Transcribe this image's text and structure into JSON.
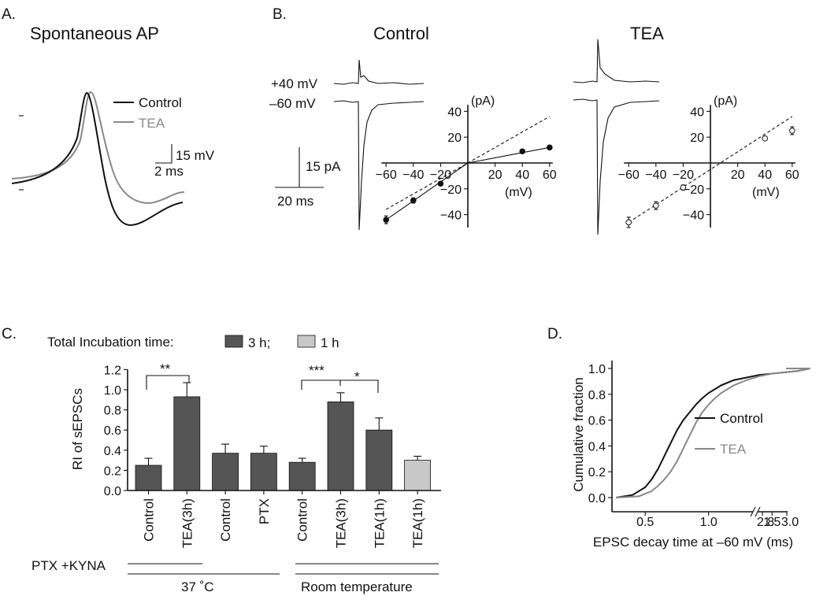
{
  "panel_a": {
    "letter": "A.",
    "title": "Spontaneous  AP",
    "legend": [
      "Control",
      "TEA"
    ],
    "scale_bar": {
      "voltage": "15 mV",
      "time": "2 ms"
    },
    "colors": {
      "control": "#111111",
      "tea": "#888888"
    }
  },
  "panel_b": {
    "letter": "B.",
    "control_title": "Control",
    "tea_title": "TEA",
    "trace_labels": [
      "+40 mV",
      "–60 mV"
    ],
    "scale_bar": {
      "current": "15 pA",
      "time": "20 ms"
    }
  },
  "panel_c": {
    "letter": "C.",
    "legend_prefix": "Total Incubation time:",
    "legend_items": [
      {
        "label": "3 h;",
        "color": "#555555"
      },
      {
        "label": "1 h",
        "color": "#c8c8c8"
      }
    ],
    "pharm_label": "PTX +KYNA",
    "group_labels": [
      "37 ˚C",
      "Room temperature"
    ],
    "sig_labels": [
      "**",
      "***",
      "*"
    ]
  },
  "panel_d": {
    "letter": "D.",
    "legend": [
      "Control",
      "TEA"
    ]
  },
  "chart_data": [
    {
      "id": "iv_control",
      "type": "scatter",
      "title": "Control",
      "xlabel": "(mV)",
      "ylabel": "(pA)",
      "xlim": [
        -60,
        60
      ],
      "ylim": [
        -50,
        45
      ],
      "xticks": [
        -60,
        -40,
        -20,
        20,
        40,
        60
      ],
      "yticks": [
        -40,
        -20,
        20,
        40
      ],
      "x": [
        -60,
        -40,
        -20,
        40,
        60
      ],
      "y": [
        -44,
        -29,
        -16,
        9,
        12
      ],
      "err": [
        3,
        2,
        1,
        1,
        1
      ],
      "fill": "#111111",
      "fit_line": [
        [
          -60,
          -44
        ],
        [
          0,
          0
        ],
        [
          60,
          12
        ]
      ],
      "reference_line": [
        [
          -60,
          -36
        ],
        [
          60,
          36
        ]
      ]
    },
    {
      "id": "iv_tea",
      "type": "scatter",
      "title": "TEA",
      "xlabel": "(mV)",
      "ylabel": "(pA)",
      "xlim": [
        -60,
        60
      ],
      "ylim": [
        -50,
        45
      ],
      "xticks": [
        -60,
        -40,
        -20,
        20,
        40,
        60
      ],
      "yticks": [
        -40,
        -20,
        20,
        40
      ],
      "x": [
        -60,
        -40,
        -20,
        40,
        60
      ],
      "y": [
        -46,
        -33,
        -19,
        19,
        25
      ],
      "err": [
        4,
        3,
        2,
        1,
        3
      ],
      "fill": "#ffffff",
      "reference_line": [
        [
          -60,
          -46
        ],
        [
          60,
          36
        ]
      ]
    },
    {
      "id": "bar_ri",
      "type": "bar",
      "ylabel": "RI of sEPSCs",
      "ylim": [
        0,
        1.2
      ],
      "yticks": [
        0.0,
        0.2,
        0.4,
        0.6,
        0.8,
        1.0,
        1.2
      ],
      "categories": [
        "Control",
        "TEA(3h)",
        "Control",
        "PTX",
        "Control",
        "TEA(3h)",
        "TEA(1h)",
        "TEA(1h)"
      ],
      "values": [
        0.25,
        0.93,
        0.37,
        0.37,
        0.28,
        0.88,
        0.6,
        0.3
      ],
      "errors": [
        0.07,
        0.14,
        0.09,
        0.07,
        0.04,
        0.09,
        0.12,
        0.04
      ],
      "colors": [
        "#555555",
        "#555555",
        "#555555",
        "#555555",
        "#555555",
        "#555555",
        "#555555",
        "#c8c8c8"
      ]
    },
    {
      "id": "cdf",
      "type": "line",
      "xlabel": "EPSC decay time at –60 mV (ms)",
      "ylabel": "Cumulative fraction",
      "xlim": [
        0.25,
        1.85
      ],
      "ylim": [
        -0.05,
        1.0
      ],
      "xticks": [
        0.5,
        1.0,
        1.5
      ],
      "xtick_labels": [
        "0.5",
        "1.0",
        "1.5"
      ],
      "xtick_break_labels": [
        "2.8",
        "3.0"
      ],
      "yticks": [
        0.0,
        0.2,
        0.4,
        0.6,
        0.8,
        1.0
      ],
      "series": [
        {
          "name": "Control",
          "color": "#111111",
          "x": [
            0.27,
            0.4,
            0.5,
            0.55,
            0.6,
            0.65,
            0.7,
            0.75,
            0.8,
            0.85,
            0.9,
            0.95,
            1.0,
            1.05,
            1.1,
            1.2,
            1.3,
            1.4,
            1.5,
            1.6,
            1.7,
            1.8
          ],
          "y": [
            0.0,
            0.02,
            0.08,
            0.14,
            0.22,
            0.32,
            0.42,
            0.52,
            0.6,
            0.66,
            0.72,
            0.77,
            0.81,
            0.84,
            0.87,
            0.91,
            0.93,
            0.95,
            0.96,
            0.97,
            0.98,
            1.0
          ]
        },
        {
          "name": "TEA",
          "color": "#888888",
          "x": [
            0.27,
            0.45,
            0.55,
            0.6,
            0.65,
            0.7,
            0.75,
            0.8,
            0.85,
            0.9,
            0.95,
            1.0,
            1.05,
            1.1,
            1.2,
            1.3,
            1.4,
            1.5,
            1.6,
            1.7,
            1.8
          ],
          "y": [
            0.0,
            0.01,
            0.05,
            0.09,
            0.14,
            0.2,
            0.28,
            0.38,
            0.48,
            0.58,
            0.66,
            0.72,
            0.77,
            0.81,
            0.87,
            0.91,
            0.94,
            0.96,
            0.97,
            0.98,
            1.0
          ]
        }
      ]
    }
  ]
}
